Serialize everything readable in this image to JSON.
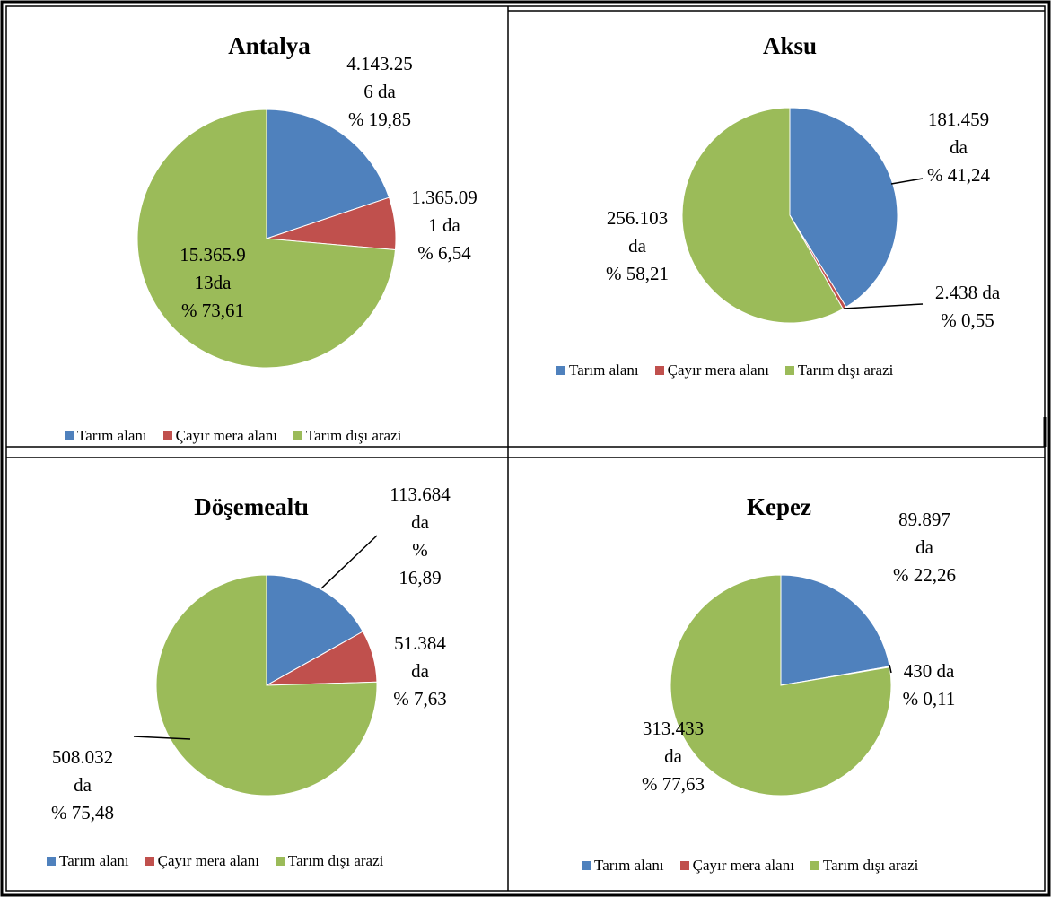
{
  "colors": {
    "tarim": "#4F81BD",
    "cayir": "#C0504D",
    "disi": "#9BBB59"
  },
  "legend_labels": [
    "Tarım alanı",
    "Çayır mera alanı",
    "Tarım dışı arazi"
  ],
  "chart_data": [
    {
      "type": "pie",
      "title": "Antalya",
      "categories": [
        "Tarım alanı",
        "Çayır mera alanı",
        "Tarım dışı arazi"
      ],
      "values": [
        19.85,
        6.54,
        73.61
      ],
      "data_labels": [
        [
          "4.143.25",
          "6 da",
          "% 19,85"
        ],
        [
          "1.365.09",
          "1 da",
          "% 6,54"
        ],
        [
          "15.365.9",
          "13da",
          "% 73,61"
        ]
      ],
      "legend_position": "bottom"
    },
    {
      "type": "pie",
      "title": "Aksu",
      "categories": [
        "Tarım alanı",
        "Çayır mera alanı",
        "Tarım dışı arazi"
      ],
      "values": [
        41.24,
        0.55,
        58.21
      ],
      "data_labels": [
        [
          "181.459",
          "da",
          "% 41,24"
        ],
        [
          "2.438 da",
          "% 0,55"
        ],
        [
          "256.103",
          "da",
          "% 58,21"
        ]
      ],
      "legend_position": "bottom"
    },
    {
      "type": "pie",
      "title": "Döşemealtı",
      "categories": [
        "Tarım alanı",
        "Çayır mera alanı",
        "Tarım dışı arazi"
      ],
      "values": [
        16.89,
        7.63,
        75.48
      ],
      "data_labels": [
        [
          "113.684",
          "da",
          "%",
          "16,89"
        ],
        [
          "51.384",
          "da",
          "% 7,63"
        ],
        [
          "508.032",
          "da",
          "% 75,48"
        ]
      ],
      "legend_position": "bottom"
    },
    {
      "type": "pie",
      "title": "Kepez",
      "categories": [
        "Tarım alanı",
        "Çayır mera alanı",
        "Tarım dışı arazi"
      ],
      "values": [
        22.26,
        0.11,
        77.63
      ],
      "data_labels": [
        [
          "89.897",
          "da",
          "% 22,26"
        ],
        [
          "430 da",
          "% 0,11"
        ],
        [
          "313.433",
          "da",
          "% 77,63"
        ]
      ],
      "legend_position": "bottom"
    }
  ]
}
